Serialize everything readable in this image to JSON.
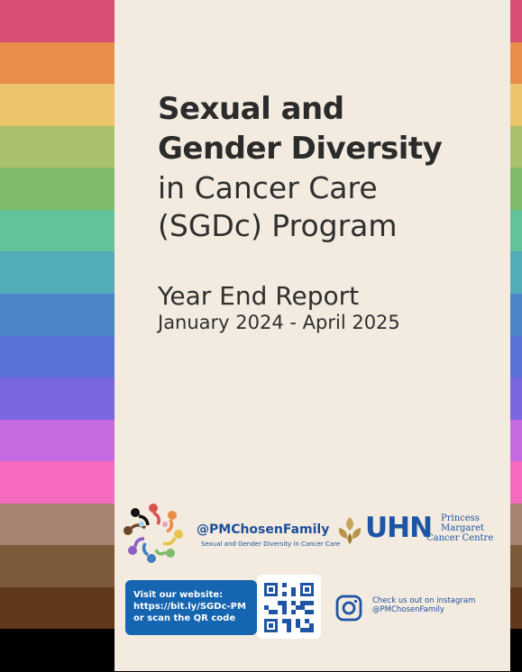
{
  "stripe_colors": [
    "#d94f73",
    "#e98d4a",
    "#ebc46b",
    "#a9c16a",
    "#7fbb6c",
    "#64c29a",
    "#53adb8",
    "#4b86c9",
    "#5873d8",
    "#7a66df",
    "#c66ae0",
    "#f66bbf",
    "#a88272",
    "#7e5a3d",
    "#62381d",
    "#000000"
  ],
  "title": {
    "line1": "Sexual and",
    "line2": "Gender Diversity",
    "line3": "in Cancer Care",
    "line4": "(SGDc) Program"
  },
  "report": {
    "label": "Year End Report",
    "dates": "January 2024 - April 2025"
  },
  "chosen_family": {
    "handle": "@PMChosenFamily",
    "subtitle": "Sexual and Gender Diversity in Cancer Care"
  },
  "uhn": {
    "name": "UHN",
    "org_line1": "Princess",
    "org_line2": "Margaret",
    "org_line3": "Cancer Centre"
  },
  "website": {
    "line1": "Visit our website:",
    "line2": "https://bit.ly/SGDc-PM",
    "line3": "or scan the QR code"
  },
  "instagram": {
    "line1": "Check us out on instagram",
    "line2": "@PMChosenFamily"
  },
  "colors": {
    "panel": "#f3ebdf",
    "brand_blue": "#1565b0",
    "text_dark": "#2b2b2b"
  }
}
